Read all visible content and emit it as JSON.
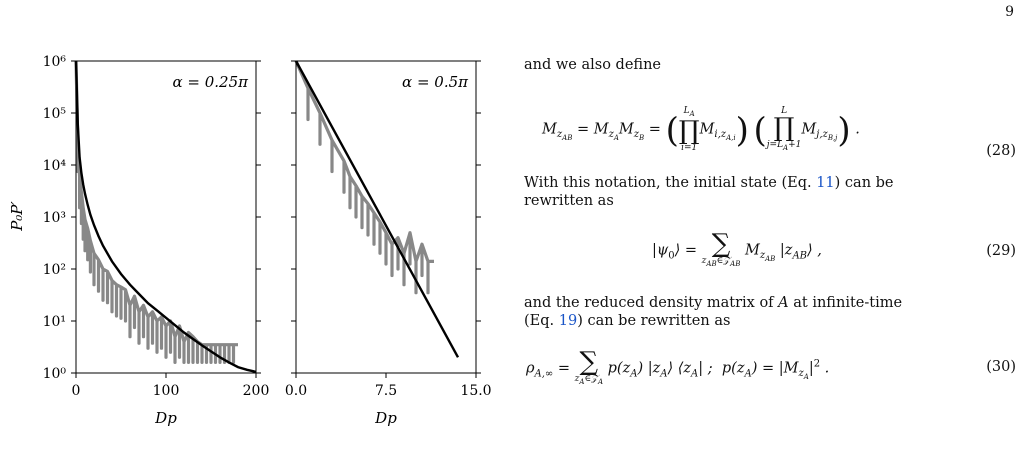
{
  "page_number": "9",
  "figure": {
    "y_axis_label": "P₀P′",
    "x_axis_label": "Dp",
    "chart_data": [
      {
        "type": "line",
        "title": "α = 0.25π",
        "xlabel": "Dp",
        "ylabel": "P₀P′",
        "xlim": [
          0,
          200
        ],
        "ylim": [
          1,
          1000000
        ],
        "y_scale": "log",
        "x_ticks": [
          0,
          100,
          200
        ],
        "x_tick_labels": [
          "0",
          "100",
          "200"
        ],
        "y_ticks": [
          1,
          10,
          100,
          1000,
          10000,
          100000,
          1000000
        ],
        "y_tick_labels": [
          "10⁰",
          "10¹",
          "10²",
          "10³",
          "10⁴",
          "10⁵",
          "10⁶"
        ],
        "series": [
          {
            "color": "#888888",
            "style": "noisy-data",
            "x": [
              0,
              2,
              4,
              6,
              8,
              10,
              13,
              16,
              20,
              25,
              30,
              35,
              40,
              45,
              50,
              55,
              60,
              65,
              70,
              75,
              80,
              85,
              90,
              95,
              100,
              105,
              110,
              115,
              120,
              125,
              130,
              135,
              140,
              145,
              150,
              155,
              160,
              165,
              170,
              175,
              180
            ],
            "y": [
              1000000,
              30000,
              6000,
              3000,
              1500,
              900,
              600,
              350,
              200,
              150,
              100,
              90,
              60,
              50,
              45,
              40,
              20,
              30,
              15,
              20,
              12,
              15,
              10,
              12,
              8,
              10,
              5,
              8,
              4,
              6,
              5,
              4,
              3.5,
              3.5,
              3.5,
              3.5,
              3.5,
              3.5,
              3.5,
              3.5,
              3.5
            ]
          },
          {
            "color": "#000000",
            "style": "fit",
            "x": [
              0,
              2,
              4,
              6,
              8,
              10,
              13,
              16,
              20,
              25,
              30,
              40,
              50,
              60,
              70,
              80,
              90,
              100,
              110,
              120,
              130,
              140,
              150,
              160,
              170,
              180,
              190,
              200
            ],
            "y": [
              1000000,
              60000,
              14000,
              7000,
              4200,
              2800,
              1700,
              1100,
              700,
              430,
              280,
              140,
              80,
              50,
              33,
              22,
              16,
              11.5,
              8.3,
              6.0,
              4.5,
              3.4,
              2.6,
              2.0,
              1.6,
              1.3,
              1.15,
              1.05
            ]
          }
        ]
      },
      {
        "type": "line",
        "title": "α = 0.5π",
        "xlabel": "Dp",
        "xlim": [
          0,
          15
        ],
        "ylim": [
          1,
          1000000
        ],
        "y_scale": "log",
        "x_ticks": [
          0,
          7.5,
          15
        ],
        "x_tick_labels": [
          "0.0",
          "7.5",
          "15.0"
        ],
        "series": [
          {
            "color": "#888888",
            "style": "noisy-data",
            "x": [
              0,
              1,
              2,
              3,
              4,
              4.5,
              5,
              5.5,
              6,
              6.5,
              7,
              7.5,
              8,
              8.5,
              9,
              9.5,
              10,
              10.5,
              11,
              11.5
            ],
            "y": [
              1000000,
              300000,
              100000,
              30000,
              12000,
              6000,
              4000,
              2500,
              1800,
              1200,
              800,
              500,
              300,
              400,
              200,
              500,
              140,
              300,
              140,
              140
            ]
          },
          {
            "color": "#000000",
            "style": "fit",
            "x": [
              0,
              13.5
            ],
            "y": [
              1000000,
              2
            ]
          }
        ]
      }
    ]
  },
  "text": {
    "intro": "and we also define",
    "eq28_number": "(28)",
    "after28_line1": "With this notation, the initial state (Eq.",
    "after28_ref": "11",
    "after28_line1_end": ") can be",
    "after28_line2": "rewritten as",
    "eq29_number": "(29)",
    "after29_line1": "and the reduced density matrix of",
    "after29_A": "A",
    "after29_line1_end": "at infinite-time",
    "after29_line2_start": "(Eq.",
    "after29_ref": "19",
    "after29_line2_end": ") can be rewritten as",
    "eq30_number": "(30)"
  }
}
